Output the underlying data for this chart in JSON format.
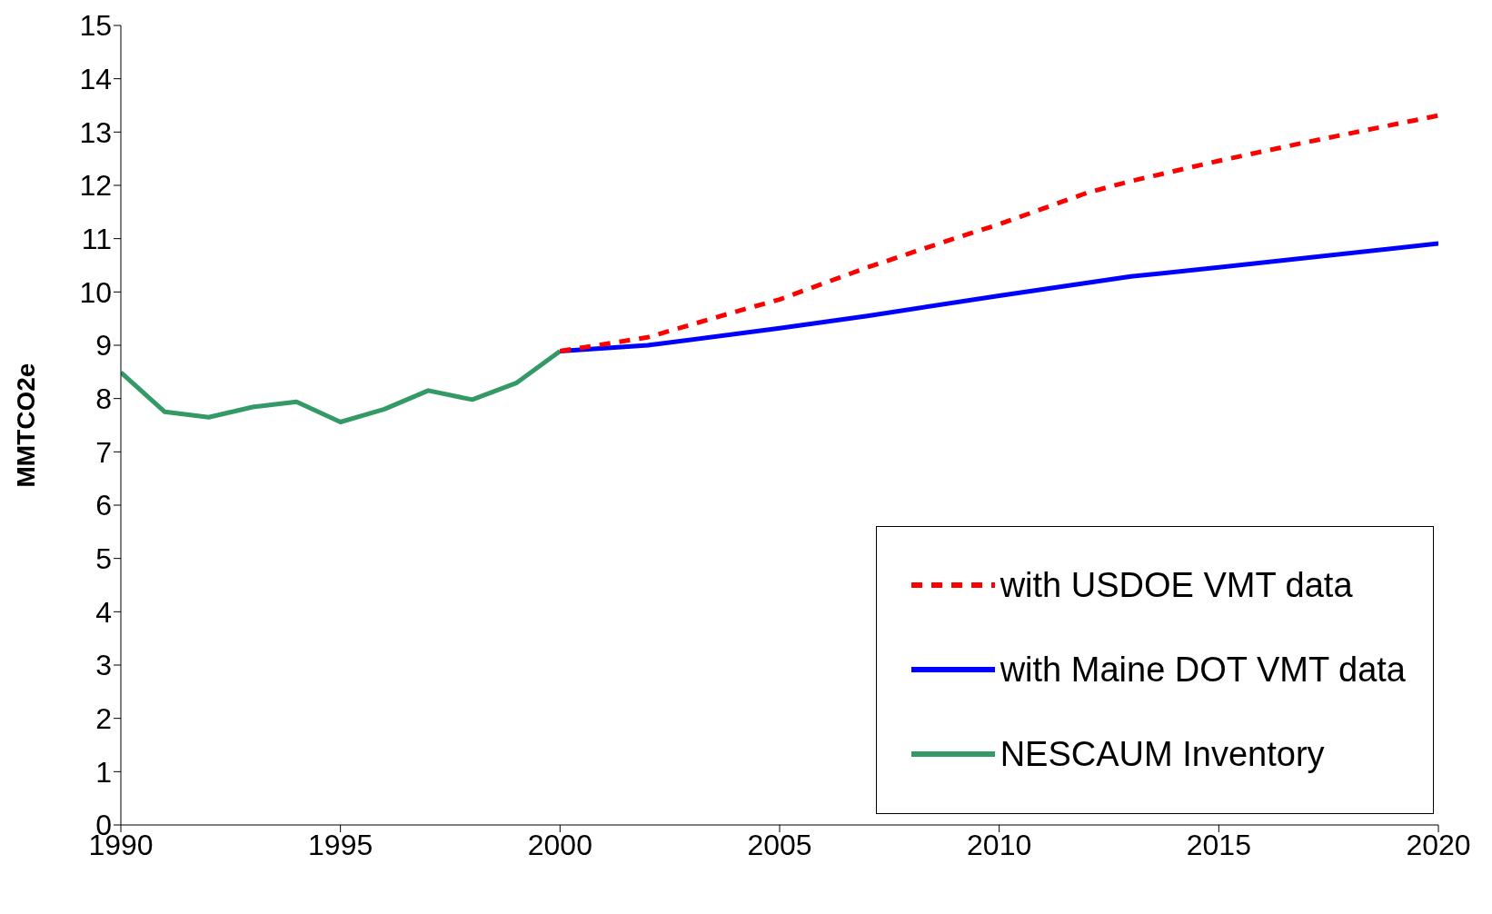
{
  "chart_data": {
    "type": "line",
    "ylabel": "MMTCO2e",
    "xlim": [
      1990,
      2020
    ],
    "xticks": [
      1990,
      1995,
      2000,
      2005,
      2010,
      2015,
      2020
    ],
    "ylim": [
      0,
      15
    ],
    "yticks": [
      0,
      1,
      2,
      3,
      4,
      5,
      6,
      7,
      8,
      9,
      10,
      11,
      12,
      13,
      14,
      15
    ],
    "grid": false,
    "legend": "bottom right",
    "marker": "none",
    "series": [
      {
        "name": "with USDOE VMT data",
        "color": "#ff0000",
        "line_style": "dashed",
        "x": [
          2000,
          2002,
          2004,
          2005,
          2007,
          2009,
          2010,
          2012,
          2013,
          2015,
          2017,
          2020
        ],
        "values": [
          8.89,
          9.15,
          9.63,
          9.86,
          10.46,
          11.01,
          11.27,
          11.86,
          12.08,
          12.46,
          12.81,
          13.31
        ]
      },
      {
        "name": "with Maine DOT VMT data",
        "color": "#0000ff",
        "line_style": "solid",
        "x": [
          2000,
          2002,
          2005,
          2007,
          2010,
          2013,
          2015,
          2020
        ],
        "values": [
          8.89,
          9.0,
          9.32,
          9.55,
          9.93,
          10.29,
          10.46,
          10.91
        ]
      },
      {
        "name": "NESCAUM Inventory",
        "color": "#339966",
        "line_style": "solid",
        "x": [
          1990,
          1991,
          1992,
          1993,
          1994,
          1995,
          1996,
          1997,
          1998,
          1999,
          2000
        ],
        "values": [
          8.49,
          7.75,
          7.65,
          7.84,
          7.94,
          7.56,
          7.8,
          8.15,
          7.98,
          8.29,
          8.89
        ]
      }
    ]
  }
}
